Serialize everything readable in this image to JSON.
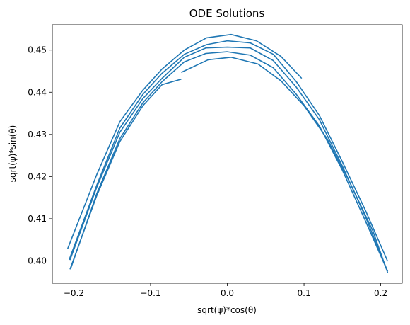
{
  "chart_data": {
    "type": "line",
    "title": "ODE Solutions",
    "xlabel": "sqrt(ψ)*cos(θ)",
    "ylabel": "sqrt(ψ)*sin(θ)",
    "xlim": [
      -0.228,
      0.228
    ],
    "ylim": [
      0.3947,
      0.456
    ],
    "xticks": [
      -0.2,
      -0.1,
      0.0,
      0.1,
      0.2
    ],
    "xtick_labels": [
      "−0.2",
      "−0.1",
      "0.0",
      "0.1",
      "0.2"
    ],
    "yticks": [
      0.4,
      0.41,
      0.42,
      0.43,
      0.44,
      0.45
    ],
    "ytick_labels": [
      "0.40",
      "0.41",
      "0.42",
      "0.43",
      "0.44",
      "0.45"
    ],
    "grid": false,
    "color": "#1f77b4",
    "series": [
      {
        "x": [
          -0.208,
          -0.17,
          -0.14,
          -0.11,
          -0.085,
          -0.056,
          -0.027,
          0.005,
          0.038,
          0.07,
          0.097
        ],
        "y": [
          0.4029,
          0.4205,
          0.433,
          0.4405,
          0.4455,
          0.45,
          0.4529,
          0.4537,
          0.4522,
          0.4485,
          0.4433
        ]
      },
      {
        "x": [
          -0.206,
          -0.17,
          -0.14,
          -0.11,
          -0.085,
          -0.056,
          -0.027,
          0.0,
          0.03,
          0.06,
          0.09,
          0.12,
          0.15,
          0.18,
          0.209
        ],
        "y": [
          0.4003,
          0.418,
          0.4315,
          0.4395,
          0.4445,
          0.449,
          0.4513,
          0.4522,
          0.4517,
          0.449,
          0.4425,
          0.4345,
          0.4235,
          0.412,
          0.3999
        ]
      },
      {
        "x": [
          -0.205,
          -0.17,
          -0.14,
          -0.11,
          -0.085,
          -0.056,
          -0.028,
          0.0,
          0.03,
          0.06,
          0.09,
          0.12,
          0.15,
          0.18,
          0.209
        ],
        "y": [
          0.4002,
          0.4175,
          0.4305,
          0.4385,
          0.4433,
          0.4483,
          0.4505,
          0.4507,
          0.4505,
          0.4475,
          0.4412,
          0.4335,
          0.4225,
          0.4105,
          0.3975
        ]
      },
      {
        "x": [
          -0.204,
          -0.17,
          -0.14,
          -0.11,
          -0.085,
          -0.056,
          -0.028,
          0.0,
          0.03,
          0.06,
          0.09,
          0.12,
          0.15,
          0.18,
          0.209
        ],
        "y": [
          0.3982,
          0.416,
          0.429,
          0.4375,
          0.4425,
          0.4472,
          0.4492,
          0.4496,
          0.4488,
          0.4458,
          0.4395,
          0.432,
          0.4215,
          0.4095,
          0.3975
        ]
      },
      {
        "x": [
          -0.205,
          -0.17,
          -0.14,
          -0.11,
          -0.085,
          -0.06
        ],
        "y": [
          0.398,
          0.4155,
          0.4283,
          0.4368,
          0.4418,
          0.4431
        ]
      },
      {
        "x": [
          -0.06,
          -0.025,
          0.005,
          0.04,
          0.07,
          0.1,
          0.13,
          0.16,
          0.19,
          0.209
        ],
        "y": [
          0.4447,
          0.4477,
          0.4483,
          0.4467,
          0.4427,
          0.4368,
          0.429,
          0.4185,
          0.407,
          0.3972
        ]
      }
    ]
  }
}
